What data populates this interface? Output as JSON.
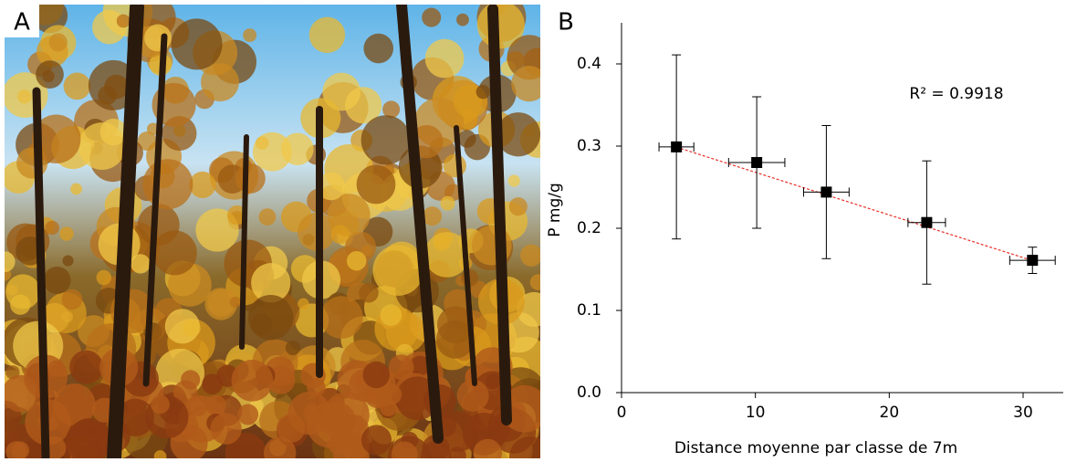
{
  "panel_labels": [
    "A",
    "B"
  ],
  "chart_data": {
    "type": "scatter",
    "x_label": "Distance moyenne par classe de 7m",
    "y_label": "P mg/g",
    "annotation": "R² = 0.9918",
    "x": [
      4.1,
      10.1,
      15.3,
      22.8,
      30.7
    ],
    "series": [
      {
        "color": "#000000",
        "values": [
          0.299,
          0.28,
          0.244,
          0.207,
          0.161
        ],
        "y_errors": [
          0.112,
          0.08,
          0.081,
          0.075,
          0.016
        ],
        "x_errors": [
          1.3,
          2.1,
          1.7,
          1.4,
          1.7
        ]
      }
    ],
    "trendline": {
      "slope": -0.00519,
      "intercept": 0.32,
      "color": "#e8302a"
    },
    "xlim": [
      0,
      33
    ],
    "ylim": [
      0,
      0.45
    ],
    "xticks": [
      0,
      10,
      20,
      30
    ],
    "yticks": [
      {
        "value": 0,
        "label": "0.0"
      },
      0.1,
      0.2,
      0.3,
      0.4
    ]
  }
}
